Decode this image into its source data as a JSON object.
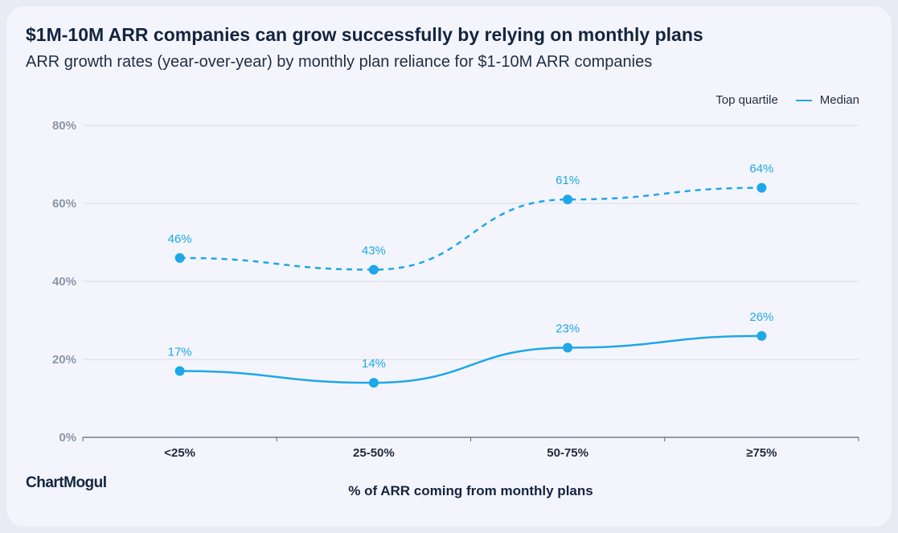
{
  "brand": "ChartMogul",
  "colors": {
    "series": "#1ea7ea",
    "grid": "#d7dbe6",
    "axis": "#5b6677"
  },
  "chart_data": {
    "type": "line",
    "title": "$1M-10M ARR companies can grow successfully by relying on monthly plans",
    "subtitle": "ARR growth rates (year-over-year) by monthly plan reliance for $1-10M ARR companies",
    "xlabel": "% of ARR coming from monthly plans",
    "ylabel": "",
    "categories": [
      "<25%",
      "25-50%",
      "50-75%",
      "≥75%"
    ],
    "ylim": [
      0,
      80
    ],
    "yticks": [
      0,
      20,
      40,
      60,
      80
    ],
    "ytick_labels": [
      "0%",
      "20%",
      "40%",
      "60%",
      "80%"
    ],
    "grid": true,
    "legend_position": "top-right",
    "series": [
      {
        "name": "Top quartile",
        "style": "dashed",
        "values": [
          46,
          43,
          61,
          64
        ],
        "labels": [
          "46%",
          "43%",
          "61%",
          "64%"
        ]
      },
      {
        "name": "Median",
        "style": "solid",
        "values": [
          17,
          14,
          23,
          26
        ],
        "labels": [
          "17%",
          "14%",
          "23%",
          "26%"
        ]
      }
    ]
  }
}
